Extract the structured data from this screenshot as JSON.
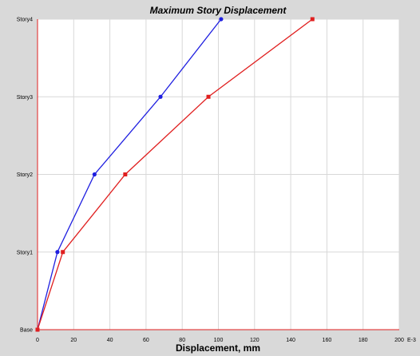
{
  "chart_data": {
    "type": "line",
    "title": "Maximum Story Displacement",
    "xlabel": "Displacement, mm",
    "x_unit_suffix": "E-3",
    "xlim": [
      0,
      200
    ],
    "x_ticks": [
      0,
      20,
      40,
      60,
      80,
      100,
      120,
      140,
      160,
      180,
      200
    ],
    "y_categories": [
      "Base",
      "Story1",
      "Story2",
      "Story3",
      "Story4"
    ],
    "grid": true,
    "series": [
      {
        "color": "#1f1fe0",
        "marker": "circle",
        "x": [
          0,
          11,
          31.5,
          68,
          101.5
        ],
        "y": [
          "Base",
          "Story1",
          "Story2",
          "Story3",
          "Story4"
        ]
      },
      {
        "color": "#e01f1f",
        "marker": "square",
        "x": [
          0,
          14,
          48.5,
          94.5,
          152
        ],
        "y": [
          "Base",
          "Story1",
          "Story2",
          "Story3",
          "Story4"
        ]
      }
    ]
  }
}
